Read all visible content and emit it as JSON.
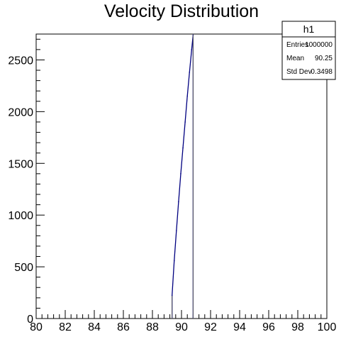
{
  "chart_data": {
    "type": "histogram",
    "title": "Velocity Distribution",
    "xlabel": "",
    "ylabel": "",
    "xlim": [
      80,
      100
    ],
    "ylim": [
      0,
      2750
    ],
    "x_ticks": [
      "80",
      "82",
      "84",
      "86",
      "88",
      "90",
      "92",
      "94",
      "96",
      "98",
      "100"
    ],
    "y_ticks": [
      "0",
      "500",
      "1000",
      "1500",
      "2000",
      "2500"
    ],
    "series": [
      {
        "color": "#000080",
        "x": [
          89.35,
          89.5,
          89.65,
          89.8,
          89.95,
          90.1,
          90.25,
          90.4,
          90.55,
          90.7,
          90.8
        ],
        "values": [
          220,
          560,
          850,
          1130,
          1400,
          1650,
          1900,
          2150,
          2380,
          2600,
          2740
        ]
      }
    ],
    "stats_box": {
      "name": "h1",
      "rows": [
        {
          "label": "Entries",
          "value": "1000000"
        },
        {
          "label": "Mean",
          "value": "90.25"
        },
        {
          "label": "Std Dev",
          "value": "0.3498"
        }
      ]
    },
    "grid": false,
    "legend": "none"
  }
}
